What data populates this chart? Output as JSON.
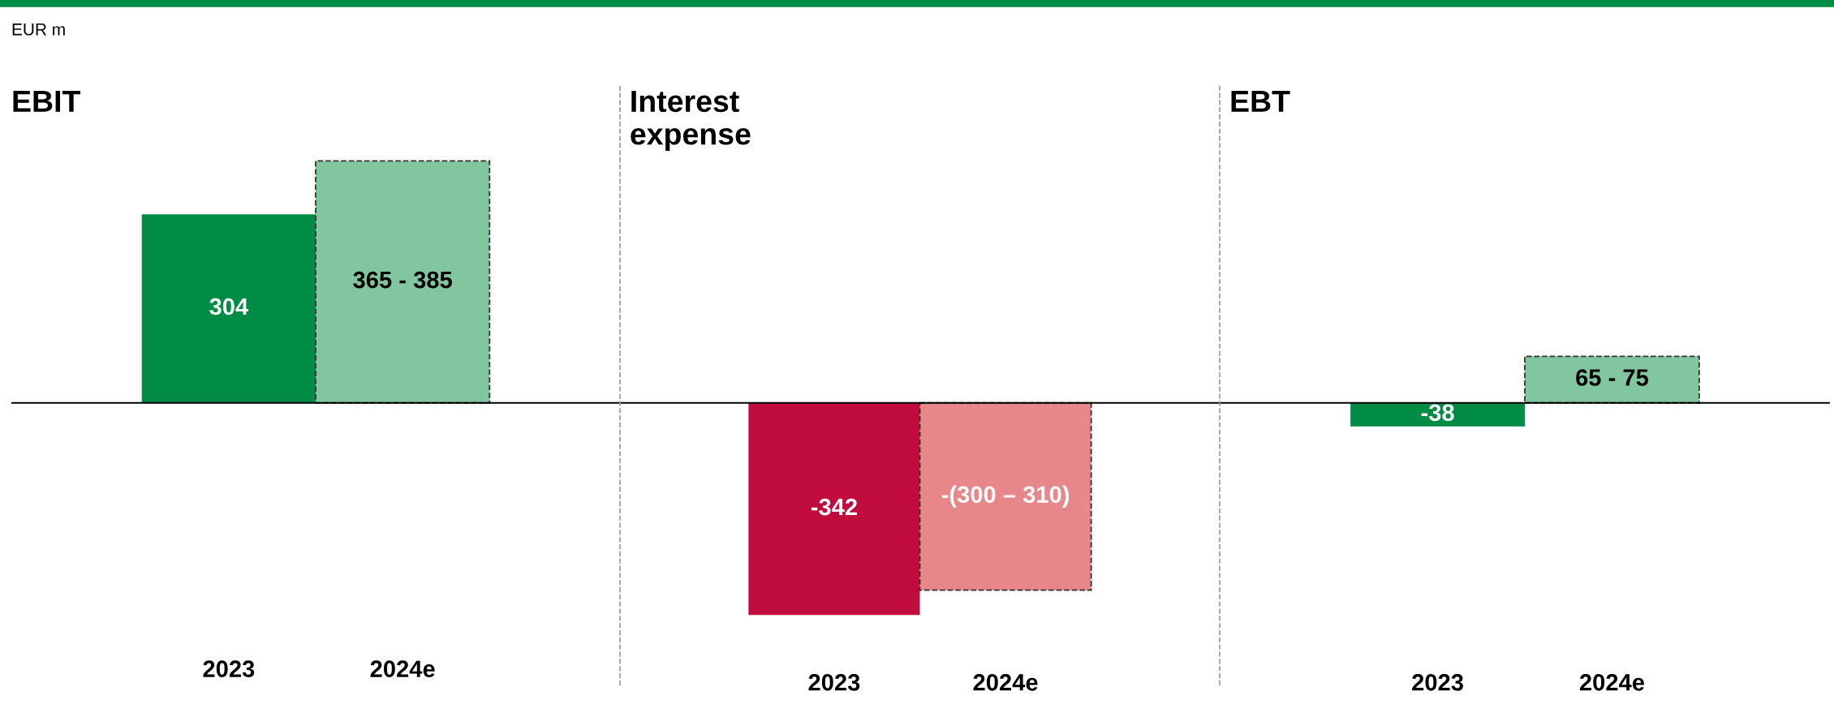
{
  "chart_data": [
    {
      "type": "bar",
      "title": "EBIT",
      "ylabel": "EUR m",
      "annotations": [
        "365 - 385"
      ],
      "categories": [
        "2023",
        "2024e"
      ],
      "series": [
        {
          "color": "#008c45",
          "values": [
            304,
            null
          ],
          "value_labels": [
            "304",
            null
          ]
        },
        {
          "color": "#82c6a0",
          "values": [
            null,
            390
          ],
          "line_style": "dashed"
        }
      ]
    },
    {
      "type": "bar",
      "title": "Interest\nexpense",
      "annotations": [
        "-(300 – 310)"
      ],
      "categories": [
        "2023",
        "2024e"
      ],
      "series": [
        {
          "color": "#c00d3d",
          "values": [
            -342,
            null
          ],
          "value_labels": [
            "-342",
            null
          ]
        },
        {
          "color": "#e78789",
          "values": [
            null,
            -302
          ],
          "line_style": "dashed"
        }
      ]
    },
    {
      "type": "bar",
      "title": "EBT",
      "annotations": [
        "65 - 75"
      ],
      "categories": [
        "2023",
        "2024e"
      ],
      "series": [
        {
          "color": "#008c45",
          "values": [
            -38,
            null
          ],
          "value_labels": [
            "-38",
            null
          ]
        },
        {
          "color": "#82c6a0",
          "values": [
            null,
            75
          ],
          "line_style": "dashed"
        }
      ]
    }
  ]
}
